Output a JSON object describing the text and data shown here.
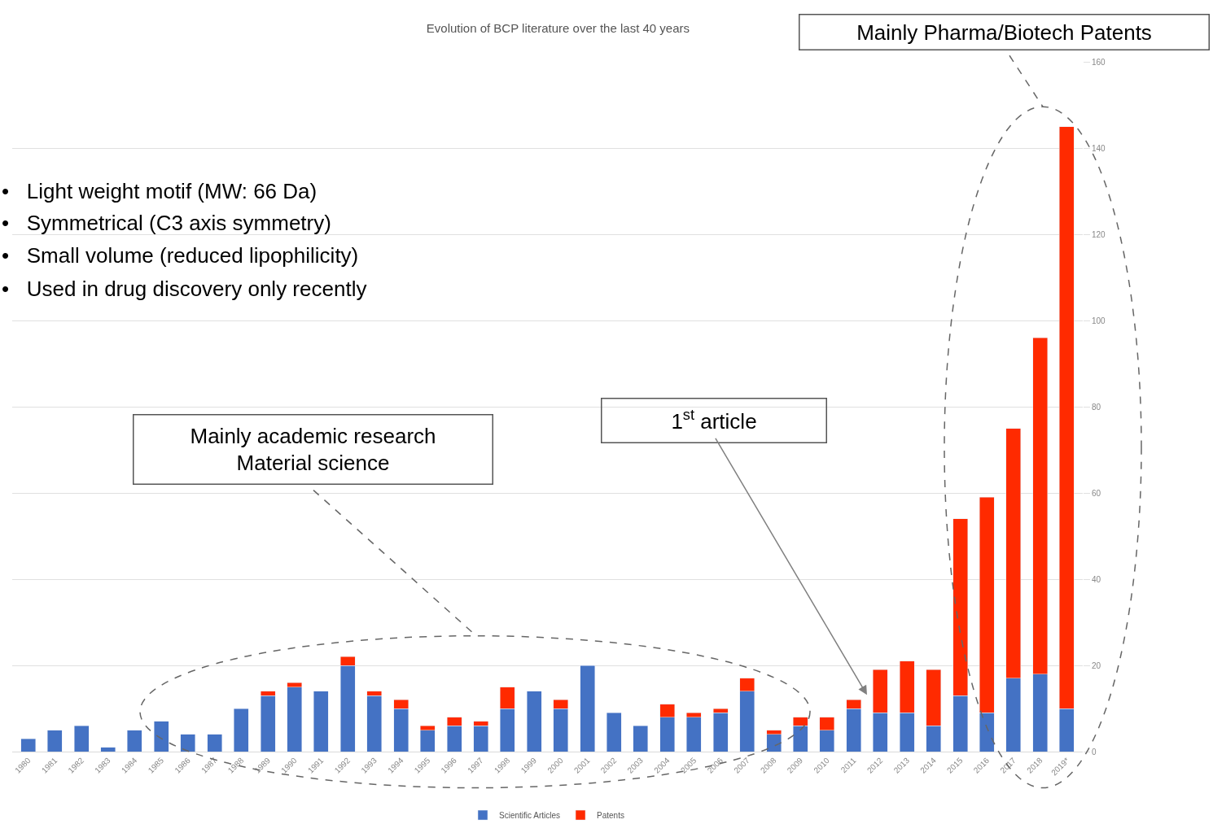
{
  "chart_data": {
    "type": "bar",
    "title": "Evolution of BCP literature over the last 40 years",
    "categories": [
      "1980",
      "1981",
      "1982",
      "1983",
      "1984",
      "1985",
      "1986",
      "1987",
      "1988",
      "1989",
      "1990",
      "1991",
      "1992",
      "1993",
      "1994",
      "1995",
      "1996",
      "1997",
      "1998",
      "1999",
      "2000",
      "2001",
      "2002",
      "2003",
      "2004",
      "2005",
      "2006",
      "2007",
      "2008",
      "2009",
      "2010",
      "2011",
      "2012",
      "2013",
      "2014",
      "2015",
      "2016",
      "2017",
      "2018",
      "2019*"
    ],
    "series": [
      {
        "name": "Scientific Articles",
        "color": "#4472c4",
        "values": [
          3,
          5,
          6,
          1,
          5,
          7,
          4,
          4,
          10,
          13,
          15,
          14,
          20,
          13,
          10,
          5,
          6,
          6,
          10,
          14,
          10,
          20,
          9,
          6,
          8,
          8,
          9,
          14,
          4,
          6,
          5,
          10,
          9,
          9,
          6,
          13,
          9,
          17,
          18,
          10
        ]
      },
      {
        "name": "Patents",
        "color": "#ff2a00",
        "values": [
          null,
          null,
          null,
          null,
          null,
          null,
          null,
          null,
          null,
          1,
          1,
          null,
          2,
          1,
          2,
          1,
          2,
          1,
          5,
          null,
          2,
          null,
          null,
          null,
          3,
          1,
          1,
          3,
          1,
          2,
          3,
          2,
          10,
          12,
          13,
          41,
          50,
          58,
          78,
          135
        ]
      }
    ],
    "stacked": true,
    "ylim": [
      0,
      160
    ],
    "yticks": [
      0,
      20,
      40,
      60,
      80,
      100,
      120,
      140,
      160
    ],
    "grid": "y",
    "legend": "bottom",
    "annotations": [
      "•   Light weight motif (MW: 66 Da)",
      "•   Symmetrical (C3 axis symmetry)",
      "•   Small volume (reduced lipophilicity)",
      "•   Used in drug discovery only recently",
      "Mainly academic research\nMaterial science",
      "1$^{st}$ article",
      "Mainly Pharma/Biotech Patents"
    ]
  }
}
